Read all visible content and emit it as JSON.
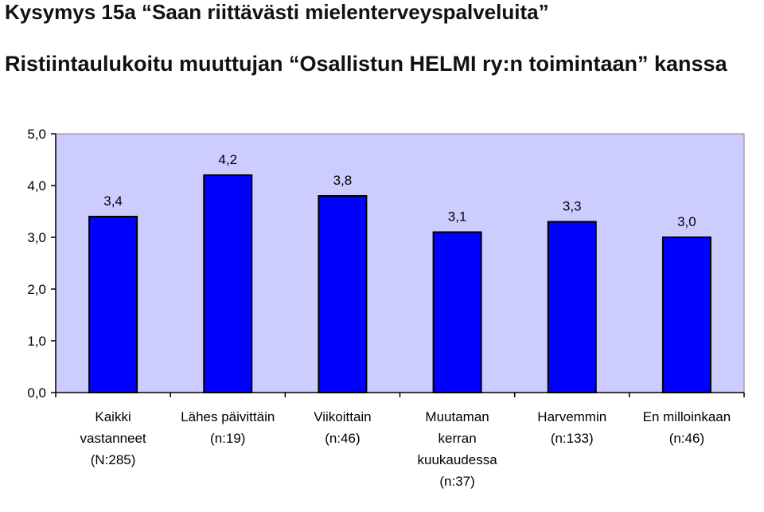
{
  "header": {
    "title": "Kysymys 15a “Saan riittävästi mielenterveyspalveluita”",
    "subtitle": "Ristiintaulukoitu muuttujan “Osallistun HELMI ry:n toimintaan” kanssa"
  },
  "chart_data": {
    "type": "bar",
    "title": "",
    "xlabel": "",
    "ylabel": "",
    "ylim": [
      0,
      5
    ],
    "yticks": [
      "0,0",
      "1,0",
      "2,0",
      "3,0",
      "4,0",
      "5,0"
    ],
    "grid": false,
    "legend": "none",
    "categories": [
      [
        "Kaikki",
        "vastanneet",
        "(N:285)"
      ],
      [
        "Lähes päivittäin",
        "(n:19)"
      ],
      [
        "Viikoittain",
        "(n:46)"
      ],
      [
        "Muutaman",
        "kerran",
        "kuukaudessa",
        "(n:37)"
      ],
      [
        "Harvemmin",
        "(n:133)"
      ],
      [
        "En milloinkaan",
        "(n:46)"
      ]
    ],
    "values": [
      3.4,
      4.2,
      3.8,
      3.1,
      3.3,
      3.0
    ],
    "data_labels": [
      "3,4",
      "4,2",
      "3,8",
      "3,1",
      "3,3",
      "3,0"
    ],
    "colors": {
      "plot_bg": "#ccccff",
      "bar_fill": "#0000ff",
      "bar_stroke": "#000000",
      "axis": "#000000"
    }
  }
}
